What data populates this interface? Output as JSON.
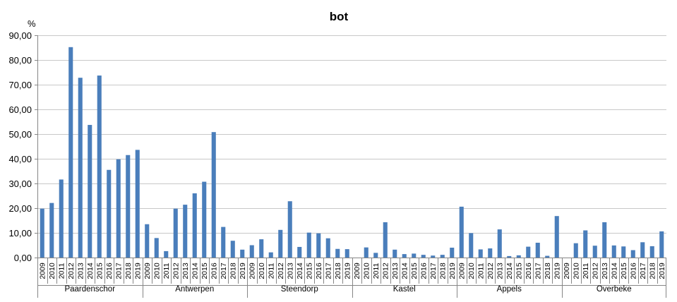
{
  "chart_data": {
    "type": "bar",
    "title": "bot",
    "ylabel": "%",
    "ylim": [
      0,
      90
    ],
    "yticks": [
      "0,00",
      "10,00",
      "20,00",
      "30,00",
      "40,00",
      "50,00",
      "60,00",
      "70,00",
      "80,00",
      "90,00"
    ],
    "grid": true,
    "legend": "none",
    "bar_color": "#4a7ebb",
    "years": [
      "2009",
      "2010",
      "2011",
      "2012",
      "2013",
      "2014",
      "2015",
      "2016",
      "2017",
      "2018",
      "2019"
    ],
    "groups": [
      {
        "name": "Paardenschor",
        "values": [
          19.8,
          22.1,
          31.6,
          85.2,
          72.8,
          53.7,
          73.7,
          35.5,
          39.8,
          41.5,
          43.6
        ]
      },
      {
        "name": "Antwerpen",
        "values": [
          13.5,
          7.9,
          2.6,
          19.8,
          21.4,
          26.0,
          30.7,
          50.8,
          12.4,
          6.8,
          3.2
        ]
      },
      {
        "name": "Steendorp",
        "values": [
          5.0,
          7.4,
          2.1,
          11.2,
          22.8,
          4.3,
          10.1,
          9.8,
          7.8,
          3.5,
          3.4
        ]
      },
      {
        "name": "Kastel",
        "values": [
          0,
          4.1,
          1.9,
          14.3,
          3.2,
          1.4,
          1.6,
          1.1,
          0.8,
          1.1,
          4.0
        ]
      },
      {
        "name": "Appels",
        "values": [
          20.6,
          9.9,
          3.3,
          3.7,
          11.4,
          0.6,
          0.9,
          4.4,
          6.0,
          0.7,
          16.8
        ]
      },
      {
        "name": "Overbeke",
        "values": [
          0,
          5.8,
          11.0,
          4.8,
          14.3,
          4.9,
          4.5,
          3.0,
          6.2,
          4.6,
          10.6
        ]
      }
    ]
  }
}
